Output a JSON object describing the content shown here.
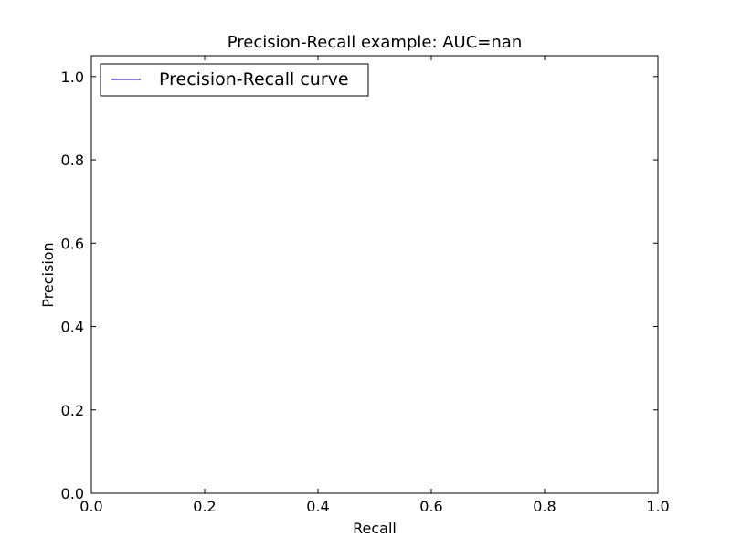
{
  "chart_data": {
    "type": "line",
    "title": "Precision-Recall example: AUC=nan",
    "xlabel": "Recall",
    "ylabel": "Precision",
    "xlim": [
      0.0,
      1.0
    ],
    "ylim": [
      0.0,
      1.05
    ],
    "xticks": [
      0.0,
      0.2,
      0.4,
      0.6,
      0.8,
      1.0
    ],
    "yticks": [
      0.0,
      0.2,
      0.4,
      0.6,
      0.8,
      1.0
    ],
    "xtick_labels": [
      "0.0",
      "0.2",
      "0.4",
      "0.6",
      "0.8",
      "1.0"
    ],
    "ytick_labels": [
      "0.0",
      "0.2",
      "0.4",
      "0.6",
      "0.8",
      "1.0"
    ],
    "grid": false,
    "legend_position": "upper-left",
    "series": [
      {
        "name": "Precision-Recall curve",
        "color": "#0000ff",
        "x": [],
        "y": []
      }
    ]
  }
}
